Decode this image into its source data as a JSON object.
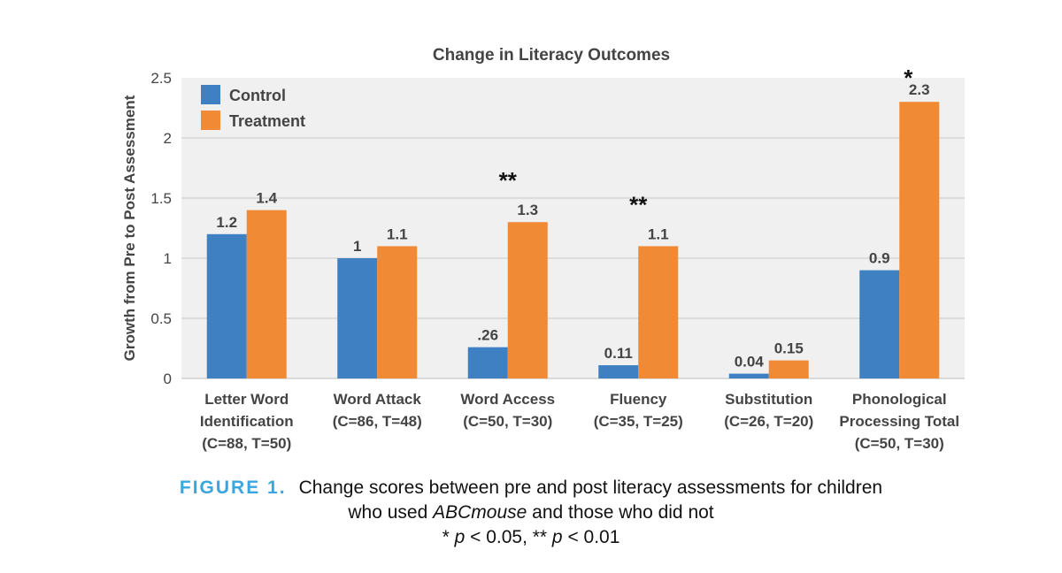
{
  "colors": {
    "control": "#3f80c2",
    "treatment": "#f08a35",
    "plot_bg": "#f0f0f0",
    "grid": "#c8c8c8",
    "text": "#444444"
  },
  "chart_data": {
    "type": "bar",
    "title": "Change in Literacy Outcomes",
    "ylabel": "Growth from Pre to Post Assessment",
    "xlabel": "",
    "ylim": [
      0,
      2.5
    ],
    "yticks": [
      "0",
      "0.5",
      "1",
      "1.5",
      "2",
      "2.5"
    ],
    "categories": [
      [
        "Letter Word",
        "Identification",
        "(C=88, T=50)"
      ],
      [
        "Word Attack",
        "(C=86, T=48)"
      ],
      [
        "Word Access",
        "(C=50, T=30)"
      ],
      [
        "Fluency",
        "(C=35, T=25)"
      ],
      [
        "Substitution",
        "(C=26, T=20)"
      ],
      [
        "Phonological",
        "Processing Total",
        "(C=50, T=30)"
      ]
    ],
    "series": [
      {
        "name": "Control",
        "values": [
          1.2,
          1,
          0.26,
          0.11,
          0.04,
          0.9
        ],
        "labels": [
          "1.2",
          "1",
          ".26",
          "0.11",
          "0.04",
          "0.9"
        ]
      },
      {
        "name": "Treatment",
        "values": [
          1.4,
          1.1,
          1.3,
          1.1,
          0.15,
          2.3
        ],
        "labels": [
          "1.4",
          "1.1",
          "1.3",
          "1.1",
          "0.15",
          "2.3"
        ]
      }
    ],
    "significance": [
      "",
      "",
      "**",
      "**",
      "",
      "*"
    ],
    "legend": "top-left",
    "grid": true
  },
  "caption": {
    "figure_label": "FIGURE 1.",
    "line1": "Change scores between pre and post literacy assessments for children",
    "line2_pre": "who used ",
    "line2_em": "ABCmouse",
    "line2_post": " and those who did not",
    "line3_a": "* ",
    "line3_p1": "p",
    "line3_b": " < 0.05, ** ",
    "line3_p2": "p",
    "line3_c": " < 0.01"
  }
}
